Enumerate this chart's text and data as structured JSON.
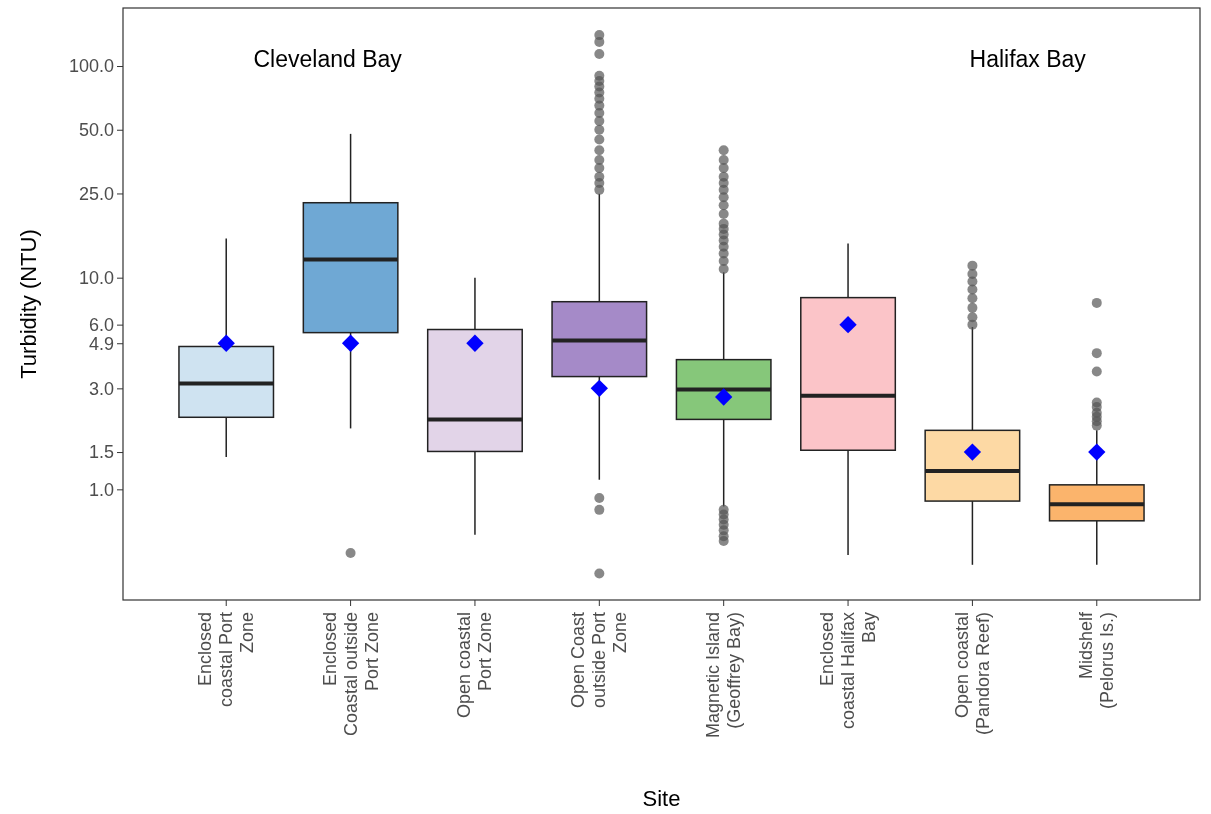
{
  "chart_data": {
    "type": "box",
    "xlabel": "Site",
    "ylabel": "Turbidity (NTU)",
    "categories": [
      "Enclosed coastal Port Zone",
      "Enclosed Coastal outside Port Zone",
      "Open coastal Port Zone",
      "Open Coast outside Port Zone",
      "Magnetic Island (Geoffrey Bay)",
      "Enclosed coastal Halifax Bay",
      "Open coastal (Pandora Reef)",
      "Midshelf (Pelorus Is.)"
    ],
    "colors": [
      "#cfe3f1",
      "#6fa8d4",
      "#e2d4e8",
      "#a58ac8",
      "#86c77a",
      "#fbc4c8",
      "#fdd9a4",
      "#fbb46c"
    ],
    "boxes": [
      {
        "low": 1.42,
        "q1": 2.19,
        "median": 3.16,
        "q3": 4.73,
        "high": 15.3
      },
      {
        "low": 1.94,
        "q1": 5.5,
        "median": 12.2,
        "q3": 22.6,
        "high": 47.8,
        "outliers": [
          0.5
        ]
      },
      {
        "low": 0.61,
        "q1": 1.51,
        "median": 2.14,
        "q3": 5.69,
        "high": 10.0
      },
      {
        "low": 1.11,
        "q1": 3.41,
        "median": 5.05,
        "q3": 7.7,
        "high": 24.9,
        "outliers": [
          0.4,
          0.8,
          0.91,
          26,
          28,
          30,
          33,
          36,
          40,
          45,
          50,
          55,
          60,
          65,
          70,
          75,
          80,
          85,
          90,
          114,
          130,
          140
        ]
      },
      {
        "low": 0.83,
        "q1": 2.14,
        "median": 2.96,
        "q3": 4.1,
        "high": 10.6,
        "outliers": [
          0.57,
          0.6,
          0.64,
          0.68,
          0.72,
          0.76,
          0.8,
          11,
          12,
          13,
          14,
          15,
          16,
          17,
          18,
          20,
          22,
          24,
          26,
          28,
          30,
          33,
          36,
          40
        ]
      },
      {
        "low": 0.49,
        "q1": 1.53,
        "median": 2.77,
        "q3": 8.05,
        "high": 14.5
      },
      {
        "low": 0.44,
        "q1": 0.88,
        "median": 1.22,
        "q3": 1.9,
        "high": 5.85,
        "outliers": [
          6.0,
          6.5,
          7.2,
          8.0,
          8.8,
          9.6,
          10.4,
          11.4
        ]
      },
      {
        "low": 0.44,
        "q1": 0.71,
        "median": 0.85,
        "q3": 1.05,
        "high": 1.9,
        "outliers": [
          2.0,
          2.1,
          2.2,
          2.3,
          2.45,
          2.57,
          3.6,
          4.4,
          7.6
        ]
      }
    ],
    "series": [
      {
        "type": "scatter",
        "color": "#0000ff",
        "marker": "diamond",
        "x": [
          "Enclosed coastal Port Zone",
          "Enclosed Coastal outside Port Zone",
          "Open coastal Port Zone",
          "Open Coast outside Port Zone",
          "Magnetic Island (Geoffrey Bay)",
          "Enclosed coastal Halifax Bay",
          "Open coastal (Pandora Reef)",
          "Midshelf (Pelorus Is.)"
        ],
        "values": [
          4.9,
          4.9,
          4.9,
          3.0,
          2.73,
          6.0,
          1.5,
          1.5
        ]
      }
    ],
    "log": true,
    "ylim": [
      0.3,
      188
    ],
    "yticks": [
      {
        "value": 1,
        "label": "1.0"
      },
      {
        "value": 1.5,
        "label": "1.5"
      },
      {
        "value": 3,
        "label": "3.0"
      },
      4.9,
      {
        "value": 6,
        "label": "6.0"
      },
      {
        "value": 10,
        "label": "10.0"
      },
      {
        "value": 25,
        "label": "25.0"
      },
      {
        "value": 50,
        "label": "50.0"
      },
      {
        "value": 100,
        "label": "100.0"
      }
    ],
    "grid": false,
    "annotations": [
      "Cleveland Bay",
      "Halifax Bay"
    ]
  }
}
